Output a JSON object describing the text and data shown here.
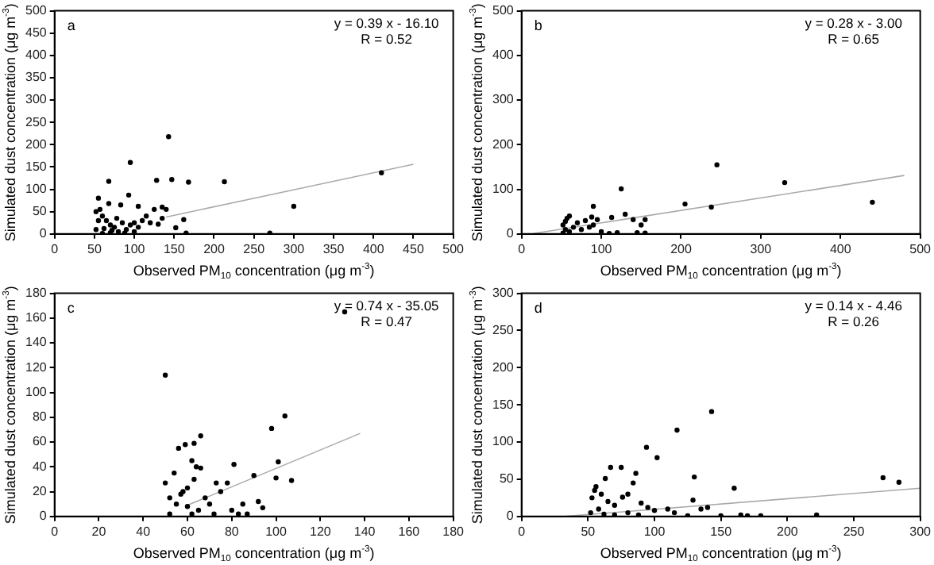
{
  "chart_data": [
    {
      "type": "scatter",
      "xlabel": "Observed PM$_{10}$ concentration (μg m$^{-3}$)",
      "ylabel": "Simulated dust concentration (μg m$^{-3}$)",
      "annotations": [
        "a",
        "y = 0.39 x - 16.10",
        "R = 0.52"
      ],
      "xlim": [
        0,
        500
      ],
      "xticks": [
        0,
        50,
        100,
        150,
        200,
        250,
        300,
        350,
        400,
        450,
        500
      ],
      "ylim": [
        0,
        500
      ],
      "yticks": [
        0,
        50,
        100,
        150,
        200,
        250,
        300,
        350,
        400,
        450,
        500
      ],
      "grid": false,
      "legend": false,
      "marker": "circle",
      "series": [
        {
          "color": "#000000",
          "x": [
            143,
            95,
            68,
            128,
            147,
            168,
            213,
            410,
            300,
            270,
            165,
            152,
            162,
            93,
            55,
            68,
            83,
            105,
            135,
            140,
            125,
            115,
            110,
            120,
            130,
            100,
            95,
            90,
            80,
            70,
            60,
            52,
            55,
            52,
            57,
            60,
            65,
            70,
            75,
            85,
            78,
            62,
            72,
            88,
            100,
            105,
            135
          ],
          "values": [
            218,
            160,
            118,
            120,
            122,
            116,
            117,
            137,
            62,
            2,
            2,
            14,
            32,
            87,
            80,
            68,
            65,
            62,
            60,
            55,
            55,
            40,
            30,
            25,
            22,
            25,
            20,
            10,
            5,
            3,
            1,
            10,
            30,
            50,
            55,
            40,
            30,
            20,
            15,
            25,
            35,
            12,
            8,
            2,
            5,
            15,
            35
          ]
        },
        {
          "type": "line",
          "color": "#aaaaaa",
          "marker": "none",
          "x": [
            140,
            450
          ],
          "values": [
            38,
            156
          ]
        }
      ]
    },
    {
      "type": "scatter",
      "xlabel": "Observed PM$_{10}$ concentration (μg m$^{-3}$)",
      "ylabel": "Simulated dust concentration (μg m$^{-3}$)",
      "annotations": [
        "b",
        "y = 0.28 x - 3.00",
        "R = 0.65"
      ],
      "xlim": [
        0,
        500
      ],
      "xticks": [
        0,
        100,
        200,
        300,
        400,
        500
      ],
      "ylim": [
        0,
        500
      ],
      "yticks": [
        0,
        100,
        200,
        300,
        400,
        500
      ],
      "grid": false,
      "legend": false,
      "marker": "circle",
      "series": [
        {
          "color": "#000000",
          "x": [
            245,
            330,
            440,
            125,
            205,
            238,
            90,
            130,
            113,
            88,
            150,
            155,
            140,
            145,
            155,
            120,
            100,
            95,
            80,
            70,
            60,
            57,
            55,
            52,
            55,
            60,
            65,
            75,
            85,
            90,
            52,
            110
          ],
          "values": [
            155,
            115,
            71,
            101,
            67,
            60,
            62,
            44,
            37,
            38,
            20,
            32,
            32,
            3,
            2,
            3,
            5,
            32,
            30,
            25,
            40,
            35,
            28,
            20,
            10,
            5,
            15,
            10,
            15,
            20,
            2,
            1
          ]
        },
        {
          "type": "line",
          "color": "#aaaaaa",
          "marker": "none",
          "x": [
            15,
            480
          ],
          "values": [
            1,
            131
          ]
        }
      ]
    },
    {
      "type": "scatter",
      "xlabel": "Observed PM$_{10}$ concentration (μg m$^{-3}$)",
      "ylabel": "Simulated dust concentration (μg m$^{-3}$)",
      "annotations": [
        "c",
        "y = 0.74 x - 35.05",
        "R = 0.47"
      ],
      "xlim": [
        0,
        180
      ],
      "xticks": [
        0,
        20,
        40,
        60,
        80,
        100,
        120,
        140,
        160,
        180
      ],
      "ylim": [
        0,
        180
      ],
      "yticks": [
        0,
        20,
        40,
        60,
        80,
        100,
        120,
        140,
        160,
        180
      ],
      "grid": false,
      "legend": false,
      "marker": "circle",
      "series": [
        {
          "color": "#000000",
          "x": [
            131,
            50,
            104,
            98,
            66,
            63,
            59,
            56,
            101,
            81,
            62,
            64,
            66,
            54,
            50,
            90,
            100,
            107,
            73,
            78,
            75,
            60,
            58,
            52,
            55,
            60,
            65,
            70,
            80,
            85,
            92,
            94,
            87,
            83,
            72,
            62,
            52,
            57,
            63,
            68
          ],
          "values": [
            165,
            114,
            81,
            71,
            65,
            59,
            58,
            55,
            44,
            42,
            45,
            40,
            39,
            35,
            27,
            33,
            31,
            29,
            27,
            27,
            20,
            23,
            20,
            15,
            10,
            8,
            5,
            10,
            5,
            10,
            12,
            7,
            2,
            2,
            2,
            2,
            2,
            18,
            30,
            15
          ]
        },
        {
          "type": "line",
          "color": "#aaaaaa",
          "marker": "none",
          "x": [
            60,
            138
          ],
          "values": [
            9,
            67
          ]
        }
      ]
    },
    {
      "type": "scatter",
      "xlabel": "Observed PM$_{10}$ concentration (μg m$^{-3}$)",
      "ylabel": "Simulated dust concentration (μg m$^{-3}$)",
      "annotations": [
        "d",
        "y = 0.14 x - 4.46",
        "R = 0.26"
      ],
      "xlim": [
        0,
        300
      ],
      "xticks": [
        0,
        50,
        100,
        150,
        200,
        250,
        300
      ],
      "ylim": [
        0,
        300
      ],
      "yticks": [
        0,
        50,
        100,
        150,
        200,
        250,
        300
      ],
      "grid": false,
      "legend": false,
      "marker": "circle",
      "series": [
        {
          "color": "#000000",
          "x": [
            143,
            117,
            94,
            102,
            67,
            75,
            86,
            84,
            63,
            130,
            160,
            272,
            284,
            129,
            135,
            140,
            80,
            76,
            56,
            55,
            60,
            53,
            65,
            70,
            90,
            95,
            100,
            110,
            115,
            165,
            180,
            222,
            52,
            58,
            62,
            70,
            80,
            88,
            125,
            150,
            170
          ],
          "values": [
            141,
            116,
            93,
            79,
            66,
            66,
            58,
            45,
            51,
            53,
            38,
            52,
            46,
            22,
            10,
            12,
            30,
            26,
            40,
            35,
            30,
            25,
            20,
            15,
            18,
            12,
            8,
            10,
            5,
            2,
            1,
            2,
            5,
            10,
            3,
            2,
            5,
            2,
            1,
            1,
            1
          ]
        },
        {
          "type": "line",
          "color": "#aaaaaa",
          "marker": "none",
          "x": [
            32,
            300
          ],
          "values": [
            0,
            38
          ]
        }
      ]
    }
  ]
}
